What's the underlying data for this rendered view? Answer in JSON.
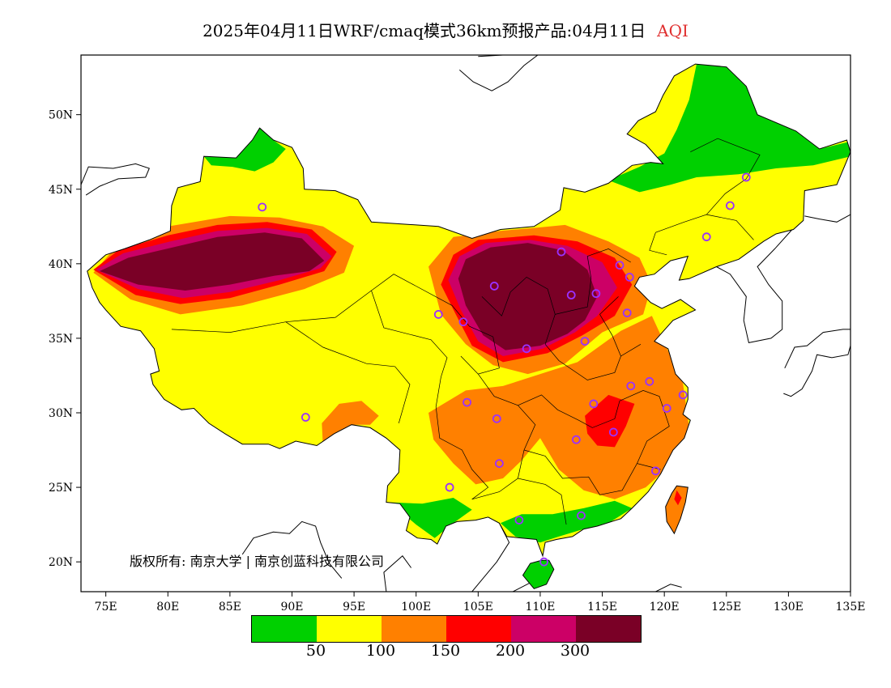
{
  "header": {
    "title": "2025年04月11日WRF/cmaq模式36km预报产品:04月11日",
    "variable": "AQI"
  },
  "map": {
    "type": "geographic-contour",
    "lon_range": [
      73,
      135
    ],
    "lat_range": [
      18,
      54
    ],
    "lon_ticks": [
      "75E",
      "80E",
      "85E",
      "90E",
      "95E",
      "100E",
      "105E",
      "110E",
      "115E",
      "120E",
      "125E",
      "130E",
      "135E"
    ],
    "lat_ticks": [
      "20N",
      "25N",
      "30N",
      "35N",
      "40N",
      "45N",
      "50N"
    ],
    "lon_tick_values": [
      75,
      80,
      85,
      90,
      95,
      100,
      105,
      110,
      115,
      120,
      125,
      130,
      135
    ],
    "lat_tick_values": [
      20,
      25,
      30,
      35,
      40,
      45,
      50
    ],
    "colors": {
      "level_0_50": "#00d000",
      "level_50_100": "#ffff00",
      "level_100_150": "#ff8000",
      "level_150_200": "#ff0000",
      "level_200_300": "#cc0066",
      "level_300_plus": "#7a0026",
      "station_marker": "#9b30ff"
    },
    "stations": [
      {
        "lon": 87.6,
        "lat": 43.8
      },
      {
        "lon": 91.1,
        "lat": 29.7
      },
      {
        "lon": 101.8,
        "lat": 36.6
      },
      {
        "lon": 103.8,
        "lat": 36.1
      },
      {
        "lon": 106.3,
        "lat": 38.5
      },
      {
        "lon": 108.9,
        "lat": 34.3
      },
      {
        "lon": 111.7,
        "lat": 40.8
      },
      {
        "lon": 112.5,
        "lat": 37.9
      },
      {
        "lon": 114.5,
        "lat": 38.0
      },
      {
        "lon": 116.4,
        "lat": 39.9
      },
      {
        "lon": 117.2,
        "lat": 39.1
      },
      {
        "lon": 117.0,
        "lat": 36.7
      },
      {
        "lon": 113.6,
        "lat": 34.8
      },
      {
        "lon": 117.3,
        "lat": 31.8
      },
      {
        "lon": 118.8,
        "lat": 32.1
      },
      {
        "lon": 121.5,
        "lat": 31.2
      },
      {
        "lon": 120.2,
        "lat": 30.3
      },
      {
        "lon": 114.3,
        "lat": 30.6
      },
      {
        "lon": 115.9,
        "lat": 28.7
      },
      {
        "lon": 112.9,
        "lat": 28.2
      },
      {
        "lon": 119.3,
        "lat": 26.1
      },
      {
        "lon": 113.3,
        "lat": 23.1
      },
      {
        "lon": 108.3,
        "lat": 22.8
      },
      {
        "lon": 110.3,
        "lat": 20.0
      },
      {
        "lon": 102.7,
        "lat": 25.0
      },
      {
        "lon": 106.7,
        "lat": 26.6
      },
      {
        "lon": 104.1,
        "lat": 30.7
      },
      {
        "lon": 106.5,
        "lat": 29.6
      },
      {
        "lon": 123.4,
        "lat": 41.8
      },
      {
        "lon": 125.3,
        "lat": 43.9
      },
      {
        "lon": 126.6,
        "lat": 45.8
      }
    ]
  },
  "legend": {
    "thresholds": [
      "50",
      "100",
      "150",
      "200",
      "300"
    ]
  },
  "footer": {
    "copyright": "版权所有: 南京大学 | 南京创蓝科技有限公司"
  }
}
